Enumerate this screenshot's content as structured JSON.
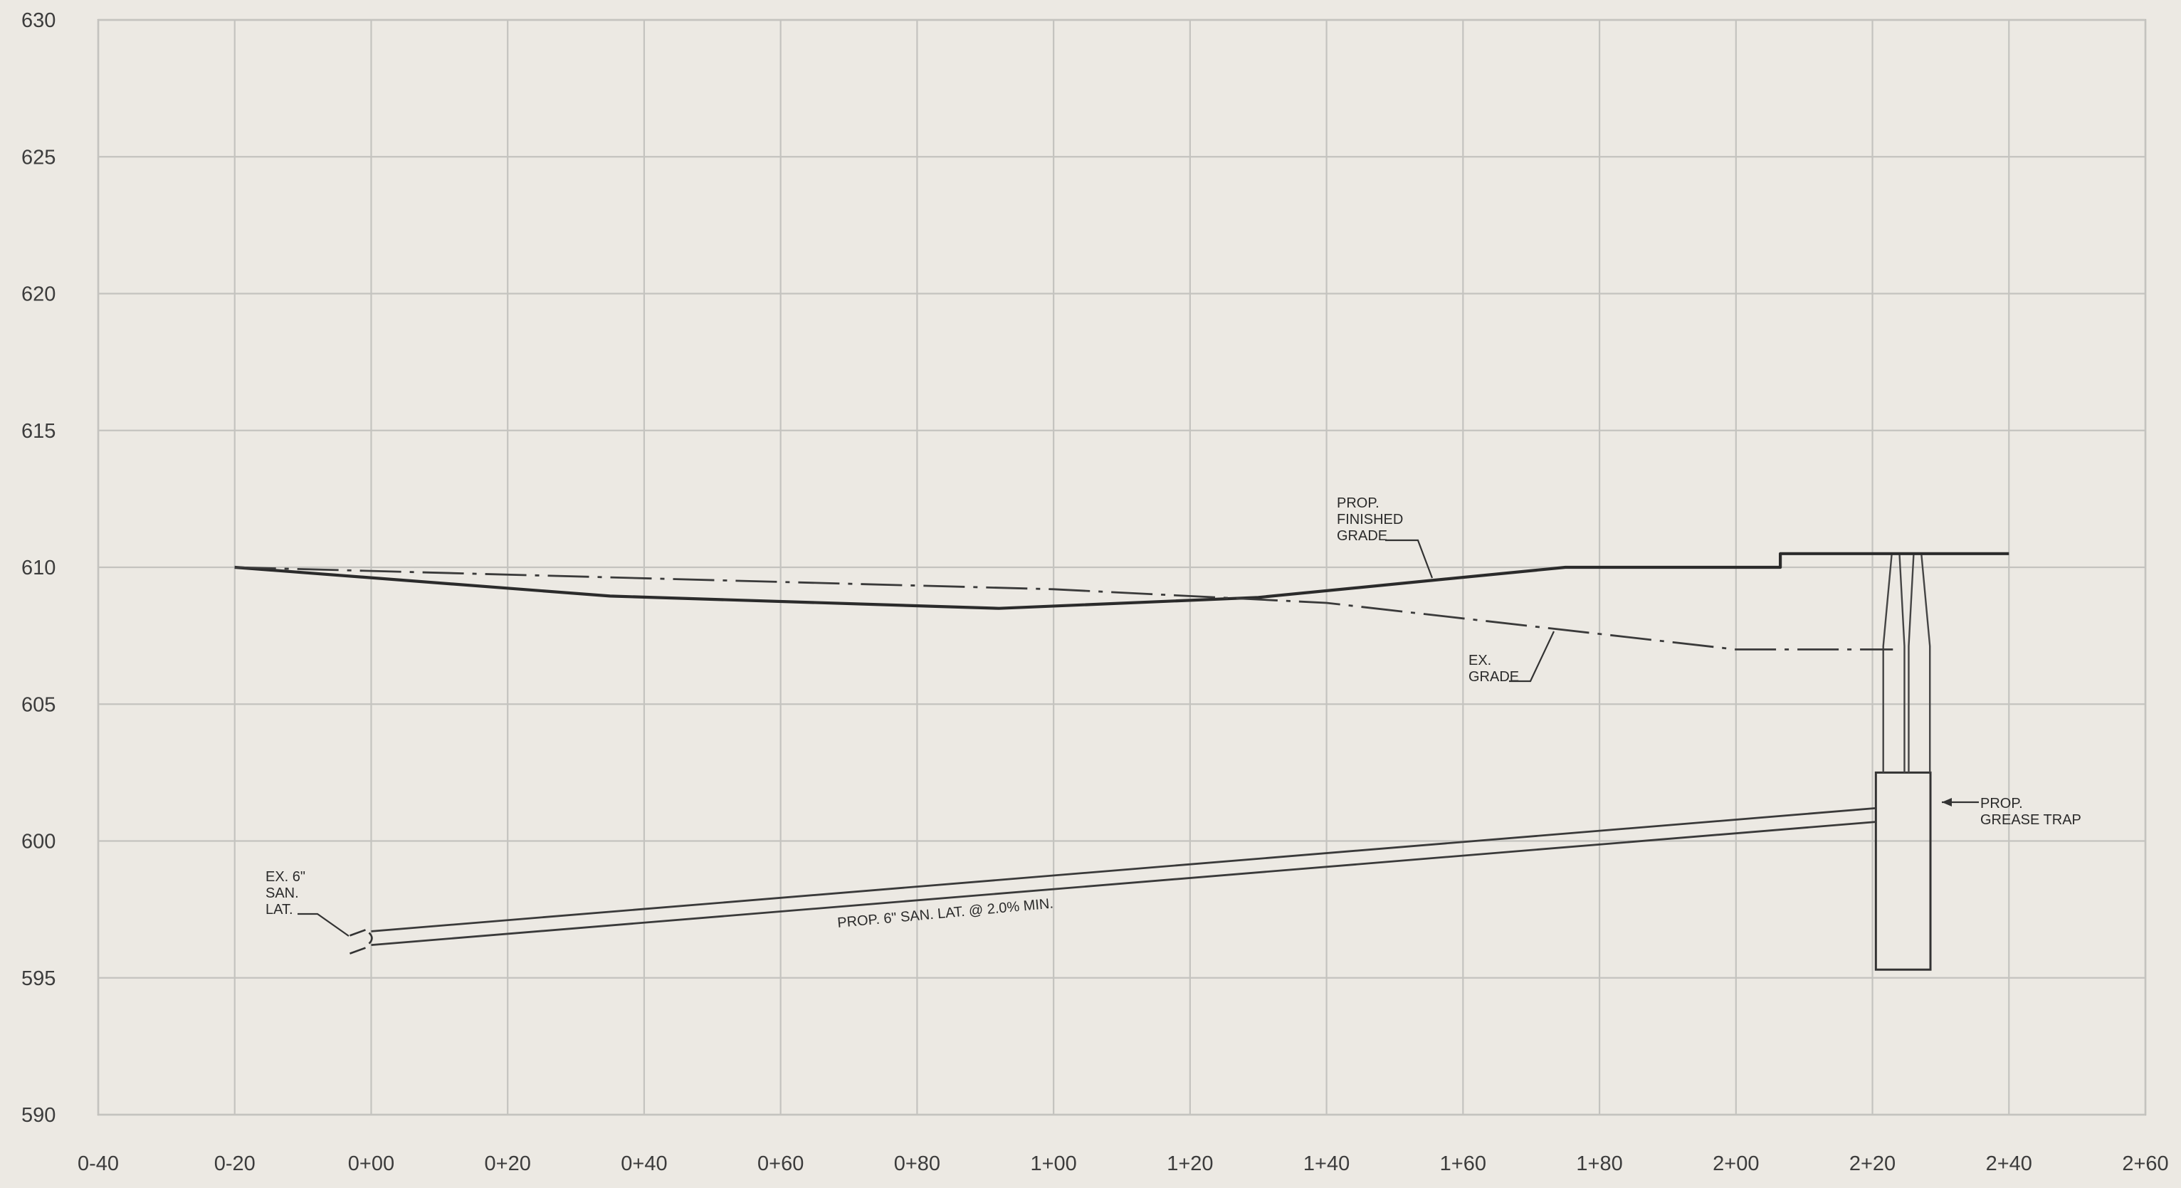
{
  "chart_data": {
    "type": "line",
    "xlabel": "",
    "ylabel": "",
    "x_range_ft": [
      -40,
      260
    ],
    "y_range_ft": [
      590,
      630
    ],
    "x_ticks": [
      {
        "v": -40,
        "label": "0-40"
      },
      {
        "v": -20,
        "label": "0-20"
      },
      {
        "v": 0,
        "label": "0+00"
      },
      {
        "v": 20,
        "label": "0+20"
      },
      {
        "v": 40,
        "label": "0+40"
      },
      {
        "v": 60,
        "label": "0+60"
      },
      {
        "v": 80,
        "label": "0+80"
      },
      {
        "v": 100,
        "label": "1+00"
      },
      {
        "v": 120,
        "label": "1+20"
      },
      {
        "v": 140,
        "label": "1+40"
      },
      {
        "v": 160,
        "label": "1+60"
      },
      {
        "v": 180,
        "label": "1+80"
      },
      {
        "v": 200,
        "label": "2+00"
      },
      {
        "v": 220,
        "label": "2+20"
      },
      {
        "v": 240,
        "label": "2+40"
      },
      {
        "v": 260,
        "label": "2+60"
      }
    ],
    "y_ticks": [
      {
        "v": 630,
        "label": "630"
      },
      {
        "v": 625,
        "label": "625"
      },
      {
        "v": 620,
        "label": "620"
      },
      {
        "v": 615,
        "label": "615"
      },
      {
        "v": 610,
        "label": "610"
      },
      {
        "v": 605,
        "label": "605"
      },
      {
        "v": 600,
        "label": "600"
      },
      {
        "v": 595,
        "label": "595"
      },
      {
        "v": 590,
        "label": "590"
      }
    ],
    "grid": true,
    "series": [
      {
        "name": "PROP. FINISHED GRADE",
        "style": "solid",
        "color": "#2b2b2b",
        "points": [
          [
            -20,
            610.0
          ],
          [
            35,
            608.95
          ],
          [
            92,
            608.5
          ],
          [
            130,
            608.9
          ],
          [
            175,
            610.0
          ],
          [
            206.5,
            610.0
          ],
          [
            206.5,
            610.5
          ],
          [
            240,
            610.5
          ]
        ]
      },
      {
        "name": "EX. GRADE",
        "style": "dash-dot",
        "color": "#3a3a3a",
        "points": [
          [
            -20,
            610.0
          ],
          [
            100,
            609.2
          ],
          [
            140,
            608.7
          ],
          [
            200,
            607.0
          ],
          [
            223,
            607.0
          ]
        ]
      },
      {
        "name": "PROP. 6\" SAN. LAT. @ 2.0% MIN. (top)",
        "style": "solid",
        "color": "#3a3a3a",
        "points": [
          [
            0,
            596.7
          ],
          [
            220.5,
            601.2
          ]
        ]
      },
      {
        "name": "PROP. 6\" SAN. LAT. @ 2.0% MIN. (bottom)",
        "style": "solid",
        "color": "#3a3a3a",
        "points": [
          [
            0,
            596.2
          ],
          [
            220.5,
            600.7
          ]
        ]
      }
    ],
    "structures": [
      {
        "name": "PROP. GREASE TRAP",
        "body_station_range": [
          220.5,
          228.5
        ],
        "body_elev_range": [
          595.3,
          602.5
        ],
        "riser_station_range": [
          222,
          228
        ],
        "riser_elev_range": [
          602.5,
          610.5
        ]
      }
    ],
    "annotations": [
      {
        "id": "finished_grade",
        "lines": [
          "PROP.",
          "FINISHED",
          "GRADE"
        ]
      },
      {
        "id": "ex_grade",
        "lines": [
          "EX.",
          "GRADE"
        ]
      },
      {
        "id": "grease_trap",
        "lines": [
          "PROP.",
          "GREASE TRAP"
        ]
      },
      {
        "id": "ex_lat",
        "lines": [
          "EX. 6\"",
          "SAN.",
          "LAT."
        ]
      },
      {
        "id": "lateral",
        "lines": [
          "PROP. 6\" SAN. LAT. @ 2.0% MIN."
        ]
      }
    ]
  },
  "colors": {
    "background": "#ece9e3",
    "grid": "#c4c3bf",
    "linework": "#2b2b2b",
    "text": "#3c3c3c"
  }
}
